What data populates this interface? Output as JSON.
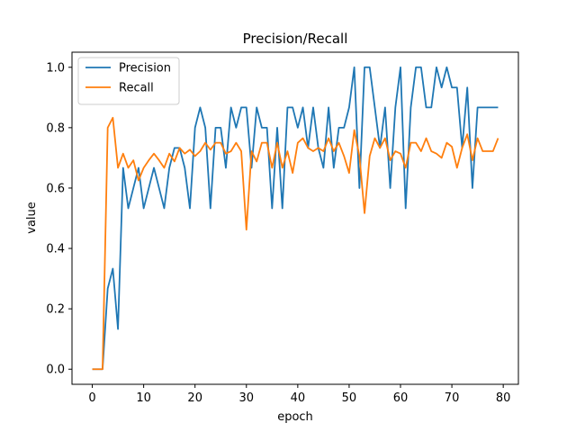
{
  "chart_data": {
    "type": "line",
    "title": "Precision/Recall",
    "xlabel": "epoch",
    "ylabel": "value",
    "xlim": [
      -3.95,
      82.95
    ],
    "ylim": [
      -0.05,
      1.05
    ],
    "xticks": [
      0,
      10,
      20,
      30,
      40,
      50,
      60,
      70,
      80
    ],
    "xtick_labels": [
      "0",
      "10",
      "20",
      "30",
      "40",
      "50",
      "60",
      "70",
      "80"
    ],
    "yticks": [
      0.0,
      0.2,
      0.4,
      0.6,
      0.8,
      1.0
    ],
    "ytick_labels": [
      "0.0",
      "0.2",
      "0.4",
      "0.6",
      "0.8",
      "1.0"
    ],
    "grid": false,
    "legend": "upper-left",
    "x": [
      0,
      1,
      2,
      3,
      4,
      5,
      6,
      7,
      8,
      9,
      10,
      11,
      12,
      13,
      14,
      15,
      16,
      17,
      18,
      19,
      20,
      21,
      22,
      23,
      24,
      25,
      26,
      27,
      28,
      29,
      30,
      31,
      32,
      33,
      34,
      35,
      36,
      37,
      38,
      39,
      40,
      41,
      42,
      43,
      44,
      45,
      46,
      47,
      48,
      49,
      50,
      51,
      52,
      53,
      54,
      55,
      56,
      57,
      58,
      59,
      60,
      61,
      62,
      63,
      64,
      65,
      66,
      67,
      68,
      69,
      70,
      71,
      72,
      73,
      74,
      75,
      76,
      77,
      78,
      79
    ],
    "series": [
      {
        "name": "Precision",
        "color": "#1f77b4",
        "values": [
          0.0,
          0.0,
          0.0,
          0.267,
          0.333,
          0.133,
          0.667,
          0.533,
          0.6,
          0.667,
          0.533,
          0.6,
          0.667,
          0.6,
          0.533,
          0.667,
          0.733,
          0.733,
          0.667,
          0.533,
          0.8,
          0.867,
          0.8,
          0.533,
          0.8,
          0.8,
          0.667,
          0.867,
          0.8,
          0.867,
          0.867,
          0.667,
          0.867,
          0.8,
          0.8,
          0.533,
          0.8,
          0.533,
          0.867,
          0.867,
          0.8,
          0.867,
          0.733,
          0.867,
          0.733,
          0.667,
          0.867,
          0.667,
          0.8,
          0.8,
          0.867,
          1.0,
          0.6,
          1.0,
          1.0,
          0.867,
          0.733,
          0.867,
          0.6,
          0.867,
          1.0,
          0.533,
          0.867,
          1.0,
          1.0,
          0.867,
          0.867,
          1.0,
          0.933,
          1.0,
          0.933,
          0.933,
          0.733,
          0.933,
          0.6,
          0.867,
          0.867,
          0.867,
          0.867,
          0.867
        ]
      },
      {
        "name": "Recall",
        "color": "#ff7f0e",
        "values": [
          0.0,
          0.0,
          0.0,
          0.8,
          0.833,
          0.667,
          0.714,
          0.667,
          0.692,
          0.625,
          0.667,
          0.692,
          0.714,
          0.692,
          0.667,
          0.714,
          0.688,
          0.733,
          0.714,
          0.727,
          0.706,
          0.722,
          0.75,
          0.727,
          0.75,
          0.75,
          0.714,
          0.722,
          0.75,
          0.722,
          0.462,
          0.722,
          0.688,
          0.75,
          0.75,
          0.667,
          0.75,
          0.667,
          0.722,
          0.65,
          0.75,
          0.765,
          0.733,
          0.722,
          0.733,
          0.722,
          0.765,
          0.722,
          0.75,
          0.706,
          0.65,
          0.792,
          0.706,
          0.517,
          0.706,
          0.765,
          0.733,
          0.765,
          0.692,
          0.722,
          0.714,
          0.667,
          0.75,
          0.75,
          0.722,
          0.765,
          0.722,
          0.714,
          0.7,
          0.75,
          0.737,
          0.667,
          0.733,
          0.778,
          0.692,
          0.765,
          0.722,
          0.722,
          0.722,
          0.765
        ]
      }
    ]
  }
}
